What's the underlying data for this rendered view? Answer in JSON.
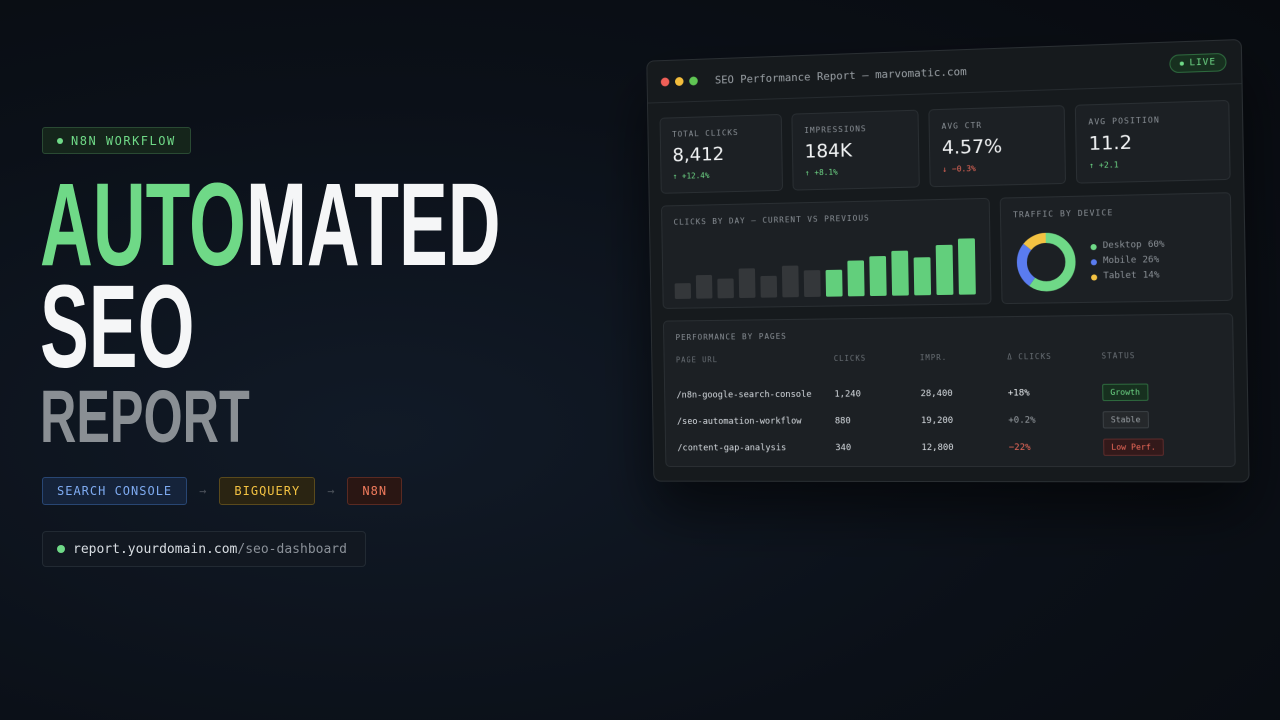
{
  "badge": "N8N WORKFLOW",
  "headline": {
    "accent": "AUTO",
    "rest": "MATED",
    "line2": "SEO",
    "line3": "REPORT"
  },
  "pipeline": [
    "SEARCH CONSOLE",
    "BIGQUERY",
    "N8N"
  ],
  "url": {
    "domain": "report.yourdomain.com",
    "path": "/seo-dashboard"
  },
  "dashboard": {
    "title": "SEO Performance Report — marvomatic.com",
    "status": "LIVE",
    "kpis": [
      {
        "label": "TOTAL CLICKS",
        "value": "8,412",
        "change": "↑ +12.4%"
      },
      {
        "label": "IMPRESSIONS",
        "value": "184K",
        "change": "↑ +8.1%"
      },
      {
        "label": "AVG CTR",
        "value": "4.57%",
        "change": "↓ −0.3%"
      },
      {
        "label": "AVG POSITION",
        "value": "11.2",
        "change": "↑ +2.1"
      }
    ],
    "clicks_chart": {
      "type": "bar",
      "title": "CLICKS BY DAY — CURRENT VS PREVIOUS",
      "series": [
        {
          "color": "#34373a",
          "values": [
            16,
            24,
            20,
            30,
            22,
            32,
            27
          ]
        },
        {
          "color": "#62cf7c",
          "values": [
            27,
            36,
            40,
            45,
            38,
            50,
            56
          ]
        }
      ]
    },
    "device_chart": {
      "type": "pie",
      "title": "TRAFFIC BY DEVICE",
      "categories": [
        "Desktop",
        "Mobile",
        "Tablet"
      ],
      "values": [
        60,
        26,
        14
      ],
      "value_labels": [
        "60%",
        "26%",
        "14%"
      ],
      "colors": [
        "#6fd987",
        "#5a7cf0",
        "#f3c242"
      ]
    },
    "table": {
      "title": "PERFORMANCE BY PAGES",
      "columns": [
        "PAGE URL",
        "CLICKS",
        "IMPR.",
        "Δ CLICKS",
        "STATUS"
      ],
      "rows": [
        [
          "/n8n-google-search-console",
          "1,240",
          "28,400",
          "+18%",
          "Growth"
        ],
        [
          "/seo-automation-workflow",
          "880",
          "19,200",
          "+0.2%",
          "Stable"
        ],
        [
          "/content-gap-analysis",
          "340",
          "12,800",
          "−22%",
          "Low Perf."
        ]
      ]
    }
  }
}
